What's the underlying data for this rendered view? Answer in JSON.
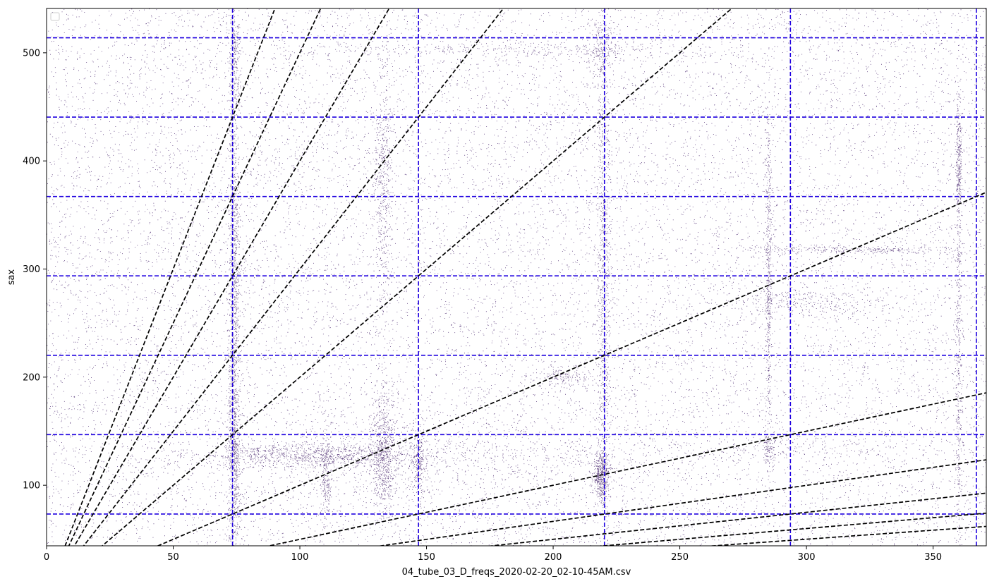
{
  "chart_data": {
    "type": "scatter",
    "title": "",
    "xlabel": "04_tube_03_D_freqs_2020-02-20_02-10-45AM.csv",
    "ylabel": "sax",
    "xlim": [
      0,
      371
    ],
    "ylim": [
      44,
      541
    ],
    "xticks": [
      0,
      50,
      100,
      150,
      200,
      250,
      300,
      350
    ],
    "yticks": [
      100,
      200,
      300,
      400,
      500
    ],
    "grid": false,
    "legend": {
      "position": "top-left",
      "entries": []
    },
    "vertical_reference_lines": {
      "color": "#1f00e0",
      "style": "dashed",
      "x": [
        73.416,
        146.832,
        220.248,
        293.664,
        367.08
      ]
    },
    "horizontal_reference_lines": {
      "color": "#1f00e0",
      "style": "dashed",
      "y": [
        73.416,
        146.832,
        220.248,
        293.664,
        367.08,
        440.496,
        513.912
      ]
    },
    "ratio_lines": {
      "color": "#000000",
      "style": "dashed",
      "slopes": [
        6,
        5,
        4,
        3,
        2,
        1,
        0.5,
        0.333,
        0.25,
        0.2,
        0.167
      ]
    },
    "point_color": "#3c1864",
    "point_clusters": [
      {
        "x": 74,
        "y": 500,
        "sx": 1.2,
        "sy": 25,
        "n": 260
      },
      {
        "x": 74,
        "y": 300,
        "sx": 1.2,
        "sy": 90,
        "n": 900
      },
      {
        "x": 74,
        "y": 130,
        "sx": 1.2,
        "sy": 60,
        "n": 700
      },
      {
        "x": 133,
        "y": 380,
        "sx": 2.0,
        "sy": 60,
        "n": 500
      },
      {
        "x": 133,
        "y": 130,
        "sx": 2.5,
        "sy": 30,
        "n": 700
      },
      {
        "x": 105,
        "y": 128,
        "sx": 25,
        "sy": 6,
        "n": 1100
      },
      {
        "x": 110,
        "y": 105,
        "sx": 1.2,
        "sy": 20,
        "n": 200
      },
      {
        "x": 147,
        "y": 120,
        "sx": 1.5,
        "sy": 20,
        "n": 220
      },
      {
        "x": 219,
        "y": 108,
        "sx": 1.5,
        "sy": 12,
        "n": 500
      },
      {
        "x": 220,
        "y": 300,
        "sx": 1.5,
        "sy": 130,
        "n": 900
      },
      {
        "x": 219,
        "y": 505,
        "sx": 3,
        "sy": 12,
        "n": 180
      },
      {
        "x": 203,
        "y": 200,
        "sx": 6,
        "sy": 5,
        "n": 150
      },
      {
        "x": 285,
        "y": 300,
        "sx": 0.6,
        "sy": 80,
        "n": 500
      },
      {
        "x": 285,
        "y": 135,
        "sx": 1.2,
        "sy": 8,
        "n": 100
      },
      {
        "x": 320,
        "y": 318,
        "sx": 25,
        "sy": 2,
        "n": 300
      },
      {
        "x": 300,
        "y": 270,
        "sx": 18,
        "sy": 8,
        "n": 300
      },
      {
        "x": 190,
        "y": 503,
        "sx": 50,
        "sy": 3,
        "n": 300
      },
      {
        "x": 360,
        "y": 400,
        "sx": 0.6,
        "sy": 30,
        "n": 280
      },
      {
        "x": 360,
        "y": 190,
        "sx": 0.7,
        "sy": 130,
        "n": 500
      },
      {
        "x": 275,
        "y": 135,
        "sx": 60,
        "sy": 6,
        "n": 250
      },
      {
        "x": 160,
        "y": 125,
        "sx": 40,
        "sy": 20,
        "n": 500
      }
    ],
    "background_point_count": 16000
  }
}
